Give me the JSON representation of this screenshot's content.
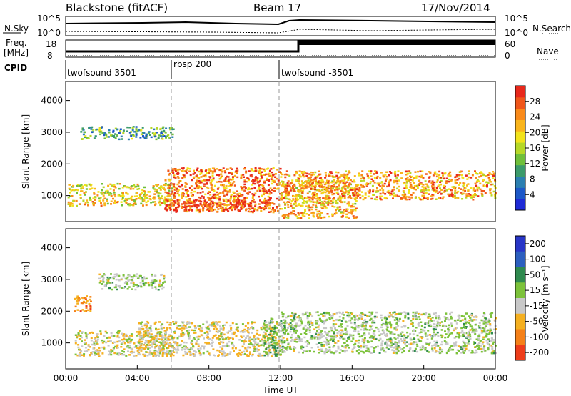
{
  "header": {
    "station": "Blackstone (fitACF)",
    "beam": "Beam 17",
    "date": "17/Nov/2014"
  },
  "top_panels": {
    "nsky_label": "N.Sky",
    "nsearch_label": "N.Search",
    "log_max_label": "10^5",
    "log_min_label": "10^0",
    "freq_label_1": "Freq.",
    "freq_label_2": "[MHz]",
    "freq_ticks": [
      "18",
      "8"
    ],
    "nave_label": "Nave",
    "nave_ticks": [
      "60",
      "0"
    ],
    "cpid_label": "CPID",
    "cpid_segments": [
      {
        "label": "twofsound 3501",
        "start_h": 0,
        "end_h": 6
      },
      {
        "label": "rbsp 200",
        "start_h": 6,
        "end_h": 12
      },
      {
        "label": "twofsound -3501",
        "start_h": 12,
        "end_h": 24
      }
    ]
  },
  "axes": {
    "ylabel": "Slant Range [km]",
    "xlabel": "Time UT",
    "y_ticks": [
      "1000",
      "2000",
      "3000",
      "4000"
    ],
    "x_ticks": [
      "00:00",
      "04:00",
      "08:00",
      "12:00",
      "16:00",
      "20:00",
      "00:00"
    ]
  },
  "colorbars": {
    "power": {
      "label": "Power [dB]",
      "ticks": [
        "4",
        "8",
        "12",
        "16",
        "20",
        "24",
        "28"
      ],
      "colors": [
        "#1f2bd6",
        "#1d58c8",
        "#2b7fb1",
        "#3b9a6b",
        "#6fbf3a",
        "#b6d827",
        "#f2e31b",
        "#f9b51c",
        "#f98a1a",
        "#f0561a",
        "#e8281b"
      ]
    },
    "velocity": {
      "label": "Velocity [m s⁻¹]",
      "ticks": [
        "200",
        "100",
        "50",
        "15",
        "-15",
        "-50",
        "-100",
        "-200"
      ],
      "colors": [
        "#2836c7",
        "#2c5fbf",
        "#2f8a4f",
        "#7cc23a",
        "#c8c8c8",
        "#f5b020",
        "#f58018",
        "#ee3d1a"
      ]
    }
  },
  "chart_data": [
    {
      "type": "heatmap",
      "title": "Power [dB]",
      "xlabel": "Time UT",
      "ylabel": "Slant Range [km]",
      "xlim_hours": [
        0,
        24
      ],
      "ylim_km": [
        180,
        4600
      ],
      "zlim": [
        0,
        30
      ],
      "features": [
        {
          "t_start": 0.1,
          "t_end": 6.0,
          "range_km": [
            700,
            1400
          ],
          "power_db": 18
        },
        {
          "t_start": 0.8,
          "t_end": 6.0,
          "range_km": [
            2800,
            3200
          ],
          "power_db": 10
        },
        {
          "t_start": 5.5,
          "t_end": 12.0,
          "range_km": [
            500,
            1900
          ],
          "power_db": 24
        },
        {
          "t_start": 5.5,
          "t_end": 11.5,
          "range_km": [
            550,
            900
          ],
          "power_db": 28
        },
        {
          "t_start": 12.0,
          "t_end": 16.2,
          "range_km": [
            300,
            1500
          ],
          "power_db": 20
        },
        {
          "t_start": 12.0,
          "t_end": 24.0,
          "range_km": [
            900,
            1800
          ],
          "power_db": 22
        }
      ]
    },
    {
      "type": "heatmap",
      "title": "Velocity [m s-1]",
      "xlabel": "Time UT",
      "ylabel": "Slant Range [km]",
      "xlim_hours": [
        0,
        24
      ],
      "ylim_km": [
        180,
        4600
      ],
      "zlim": [
        -200,
        200
      ],
      "features": [
        {
          "t_start": 0.5,
          "t_end": 6.0,
          "range_km": [
            600,
            1400
          ],
          "velocity_ms": -30
        },
        {
          "t_start": 0.4,
          "t_end": 1.4,
          "range_km": [
            2000,
            2500
          ],
          "velocity_ms": -120
        },
        {
          "t_start": 1.8,
          "t_end": 5.5,
          "range_km": [
            2700,
            3200
          ],
          "velocity_ms": 0
        },
        {
          "t_start": 4.0,
          "t_end": 12.0,
          "range_km": [
            600,
            1700
          ],
          "velocity_ms": -40
        },
        {
          "t_start": 11.0,
          "t_end": 12.2,
          "range_km": [
            600,
            1800
          ],
          "velocity_ms": 30
        },
        {
          "t_start": 12.0,
          "t_end": 24.0,
          "range_km": [
            700,
            2000
          ],
          "velocity_ms": 0
        }
      ]
    }
  ]
}
